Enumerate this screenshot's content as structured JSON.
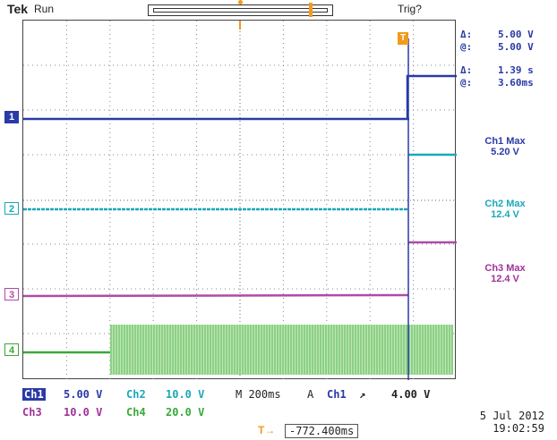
{
  "header": {
    "brand": "Tek",
    "status": "Run",
    "trigger_status": "Trig?"
  },
  "cursors": {
    "delta_v": "5.00 V",
    "abs_v": "5.00 V",
    "delta_t": "1.39 s",
    "abs_t": "3.60ms",
    "delta_symbol": "Δ:",
    "at_symbol": "@:"
  },
  "measurements": [
    {
      "label": "Ch1 Max",
      "value": "5.20 V",
      "color": "#2a3aa6"
    },
    {
      "label": "Ch2 Max",
      "value": "12.4 V",
      "color": "#1aa8b8"
    },
    {
      "label": "Ch3 Max",
      "value": "12.4 V",
      "color": "#a0319a"
    }
  ],
  "channels": [
    {
      "id": "1",
      "color": "#2a3aa6"
    },
    {
      "id": "2",
      "color": "#1aa8b8"
    },
    {
      "id": "3",
      "color": "#b04aa8"
    },
    {
      "id": "4",
      "color": "#3aa83a"
    }
  ],
  "bottom": {
    "ch1_label": "Ch1",
    "ch1_scale": "5.00 V",
    "ch2_label": "Ch2",
    "ch2_scale": "10.0 V",
    "ch3_label": "Ch3",
    "ch3_scale": "10.0 V",
    "ch4_label": "Ch4",
    "ch4_scale": "20.0 V",
    "timebase": "M 200ms",
    "trigger_mode": "A",
    "trigger_source": "Ch1",
    "trigger_slope": "↗",
    "trigger_level": "4.00 V",
    "horizontal_delay": "-772.400ms",
    "date": "5 Jul  2012",
    "time": "19:02:59"
  },
  "colors": {
    "ch1": "#2a3aa6",
    "ch2": "#1aa8b8",
    "ch3": "#b04aa8",
    "ch4": "#3aa83a",
    "trigger": "#f29a1c"
  }
}
